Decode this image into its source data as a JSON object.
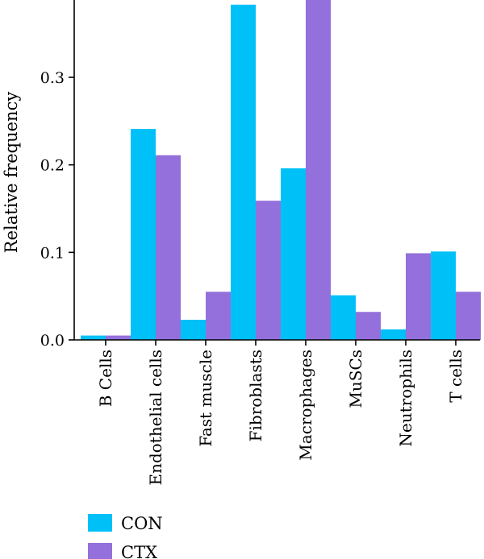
{
  "chart_data": {
    "type": "bar",
    "title": "",
    "xlabel": "",
    "ylabel": "Relative frequency",
    "ylim": [
      0,
      0.38
    ],
    "yticks": [
      0.0,
      0.1,
      0.2,
      0.3
    ],
    "ytick_labels": [
      "0.0",
      "0.1",
      "0.2",
      "0.3"
    ],
    "grid": false,
    "legend_position": "bottom-left",
    "categories": [
      "B Cells",
      "Endothelial cells",
      "Fast muscle",
      "Fibroblasts",
      "Macrophages",
      "MuSCs",
      "Neutrophils",
      "T cells"
    ],
    "series": [
      {
        "name": "CON",
        "color": "#00c0f8",
        "values": [
          0.005,
          0.241,
          0.023,
          0.383,
          0.196,
          0.051,
          0.012,
          0.101
        ]
      },
      {
        "name": "CTX",
        "color": "#9370db",
        "values": [
          0.005,
          0.211,
          0.055,
          0.159,
          0.4,
          0.032,
          0.099,
          0.055
        ]
      }
    ]
  }
}
